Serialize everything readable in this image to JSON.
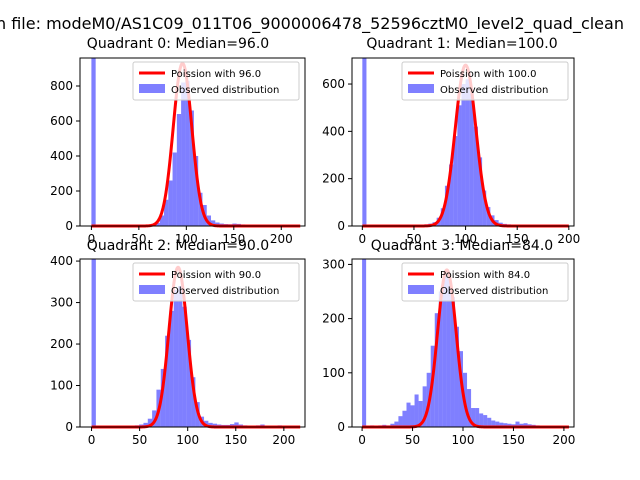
{
  "figure": {
    "suptitle": "n file: modeM0/AS1C09_011T06_9000006478_52596cztM0_level2_quad_clean"
  },
  "colors": {
    "hist": "#0000ff",
    "curve": "#ff0000",
    "axis": "#000000"
  },
  "chart_data": [
    {
      "type": "bar",
      "title": "Quadrant 0: Median=96.0",
      "xlim": [
        -12,
        225
      ],
      "ylim": [
        0,
        960
      ],
      "xticks": [
        0,
        50,
        100,
        150,
        200
      ],
      "yticks": [
        0,
        200,
        400,
        600,
        800
      ],
      "legend": {
        "location": "top-right",
        "curve_label": "Poission with 96.0",
        "hist_label": "Observed distribution"
      },
      "poisson_mean": 96.0,
      "curve_peak": 930,
      "hist_bin_width": 4.5,
      "hist": [
        [
          0,
          960
        ],
        [
          4.5,
          3
        ],
        [
          9,
          2
        ],
        [
          13.5,
          1
        ],
        [
          18,
          2
        ],
        [
          22.5,
          1
        ],
        [
          27,
          2
        ],
        [
          31.5,
          2
        ],
        [
          36,
          2
        ],
        [
          40.5,
          3
        ],
        [
          45,
          4
        ],
        [
          49.5,
          5
        ],
        [
          54,
          6
        ],
        [
          58.5,
          8
        ],
        [
          63,
          12
        ],
        [
          67.5,
          18
        ],
        [
          72,
          60
        ],
        [
          76.5,
          150
        ],
        [
          81,
          260
        ],
        [
          85.5,
          420
        ],
        [
          90,
          640
        ],
        [
          94.5,
          820
        ],
        [
          99,
          830
        ],
        [
          103.5,
          660
        ],
        [
          108,
          400
        ],
        [
          112.5,
          190
        ],
        [
          117,
          120
        ],
        [
          121.5,
          60
        ],
        [
          126,
          32
        ],
        [
          130.5,
          20
        ],
        [
          135,
          14
        ],
        [
          139.5,
          11
        ],
        [
          144,
          10
        ],
        [
          148.5,
          14
        ],
        [
          153,
          12
        ],
        [
          157.5,
          9
        ],
        [
          162,
          7
        ],
        [
          166.5,
          6
        ],
        [
          171,
          4
        ],
        [
          175.5,
          3
        ],
        [
          180,
          3
        ],
        [
          184.5,
          2
        ],
        [
          189,
          2
        ],
        [
          193.5,
          2
        ],
        [
          198,
          1
        ],
        [
          202.5,
          1
        ],
        [
          207,
          1
        ],
        [
          211.5,
          1
        ],
        [
          216,
          1
        ]
      ]
    },
    {
      "type": "bar",
      "title": "Quadrant 1: Median=100.0",
      "xlim": [
        -10,
        205
      ],
      "ylim": [
        0,
        710
      ],
      "xticks": [
        0,
        50,
        100,
        150,
        200
      ],
      "yticks": [
        0,
        200,
        400,
        600
      ],
      "legend": {
        "location": "top-right",
        "curve_label": "Poission with 100.0",
        "hist_label": "Observed distribution"
      },
      "poisson_mean": 100.0,
      "curve_peak": 680,
      "hist_bin_width": 4,
      "hist": [
        [
          0,
          710
        ],
        [
          4,
          2
        ],
        [
          8,
          1
        ],
        [
          12,
          1
        ],
        [
          16,
          2
        ],
        [
          20,
          1
        ],
        [
          24,
          2
        ],
        [
          28,
          2
        ],
        [
          32,
          2
        ],
        [
          36,
          2
        ],
        [
          40,
          3
        ],
        [
          44,
          3
        ],
        [
          48,
          4
        ],
        [
          52,
          4
        ],
        [
          56,
          5
        ],
        [
          60,
          7
        ],
        [
          64,
          10
        ],
        [
          68,
          16
        ],
        [
          72,
          35
        ],
        [
          76,
          75
        ],
        [
          80,
          170
        ],
        [
          84,
          260
        ],
        [
          88,
          380
        ],
        [
          92,
          510
        ],
        [
          96,
          600
        ],
        [
          100,
          620
        ],
        [
          104,
          560
        ],
        [
          108,
          420
        ],
        [
          112,
          290
        ],
        [
          116,
          150
        ],
        [
          120,
          80
        ],
        [
          124,
          45
        ],
        [
          128,
          25
        ],
        [
          132,
          14
        ],
        [
          136,
          9
        ],
        [
          140,
          7
        ],
        [
          144,
          5
        ],
        [
          148,
          4
        ],
        [
          152,
          3
        ],
        [
          156,
          3
        ],
        [
          160,
          2
        ],
        [
          164,
          2
        ],
        [
          168,
          2
        ],
        [
          172,
          1
        ],
        [
          176,
          1
        ],
        [
          180,
          1
        ],
        [
          184,
          1
        ],
        [
          188,
          1
        ]
      ]
    },
    {
      "type": "bar",
      "title": "Quadrant 2: Median=90.0",
      "xlim": [
        -12,
        222
      ],
      "ylim": [
        0,
        405
      ],
      "xticks": [
        0,
        50,
        100,
        150,
        200
      ],
      "yticks": [
        0,
        100,
        200,
        300,
        400
      ],
      "legend": {
        "location": "top-right",
        "curve_label": "Poission with 90.0",
        "hist_label": "Observed distribution"
      },
      "poisson_mean": 90.0,
      "curve_peak": 385,
      "hist_bin_width": 4.5,
      "hist": [
        [
          0,
          405
        ],
        [
          4.5,
          2
        ],
        [
          9,
          1
        ],
        [
          13.5,
          1
        ],
        [
          18,
          1
        ],
        [
          22.5,
          1
        ],
        [
          27,
          2
        ],
        [
          31.5,
          2
        ],
        [
          36,
          2
        ],
        [
          40.5,
          3
        ],
        [
          45,
          4
        ],
        [
          49.5,
          6
        ],
        [
          54,
          10
        ],
        [
          58.5,
          20
        ],
        [
          63,
          40
        ],
        [
          67.5,
          90
        ],
        [
          72,
          140
        ],
        [
          76.5,
          220
        ],
        [
          81,
          280
        ],
        [
          85.5,
          330
        ],
        [
          90,
          340
        ],
        [
          94.5,
          290
        ],
        [
          99,
          210
        ],
        [
          103.5,
          120
        ],
        [
          108,
          60
        ],
        [
          112.5,
          25
        ],
        [
          117,
          15
        ],
        [
          121.5,
          10
        ],
        [
          126,
          8
        ],
        [
          130.5,
          6
        ],
        [
          135,
          5
        ],
        [
          139.5,
          5
        ],
        [
          144,
          7
        ],
        [
          148.5,
          11
        ],
        [
          153,
          6
        ],
        [
          157.5,
          4
        ],
        [
          162,
          3
        ],
        [
          166.5,
          3
        ],
        [
          171,
          4
        ],
        [
          175.5,
          6
        ],
        [
          180,
          3
        ],
        [
          184.5,
          2
        ],
        [
          189,
          3
        ],
        [
          193.5,
          4
        ],
        [
          198,
          2
        ],
        [
          202.5,
          2
        ],
        [
          207,
          1
        ]
      ]
    },
    {
      "type": "bar",
      "title": "Quadrant 3: Median=84.0",
      "xlim": [
        -10,
        210
      ],
      "ylim": [
        0,
        310
      ],
      "xticks": [
        0,
        50,
        100,
        150,
        200
      ],
      "yticks": [
        0,
        100,
        200,
        300
      ],
      "legend": {
        "location": "top-right",
        "curve_label": "Poission with 84.0",
        "hist_label": "Observed distribution"
      },
      "poisson_mean": 84.0,
      "curve_peak": 290,
      "hist_bin_width": 4,
      "hist": [
        [
          0,
          310
        ],
        [
          4,
          2
        ],
        [
          8,
          3
        ],
        [
          12,
          2
        ],
        [
          16,
          3
        ],
        [
          20,
          4
        ],
        [
          24,
          3
        ],
        [
          28,
          6
        ],
        [
          32,
          10
        ],
        [
          36,
          20
        ],
        [
          40,
          30
        ],
        [
          44,
          45
        ],
        [
          48,
          40
        ],
        [
          52,
          60
        ],
        [
          56,
          48
        ],
        [
          60,
          75
        ],
        [
          64,
          100
        ],
        [
          68,
          150
        ],
        [
          72,
          210
        ],
        [
          76,
          250
        ],
        [
          80,
          280
        ],
        [
          84,
          275
        ],
        [
          88,
          240
        ],
        [
          92,
          185
        ],
        [
          96,
          140
        ],
        [
          100,
          100
        ],
        [
          104,
          70
        ],
        [
          108,
          35
        ],
        [
          112,
          35
        ],
        [
          116,
          25
        ],
        [
          120,
          22
        ],
        [
          124,
          17
        ],
        [
          128,
          12
        ],
        [
          132,
          10
        ],
        [
          136,
          8
        ],
        [
          140,
          7
        ],
        [
          144,
          6
        ],
        [
          148,
          5
        ],
        [
          152,
          10
        ],
        [
          156,
          6
        ],
        [
          160,
          7
        ],
        [
          164,
          5
        ],
        [
          168,
          4
        ],
        [
          172,
          3
        ],
        [
          176,
          2
        ],
        [
          180,
          2
        ],
        [
          184,
          1
        ],
        [
          188,
          1
        ],
        [
          192,
          1
        ]
      ]
    }
  ]
}
